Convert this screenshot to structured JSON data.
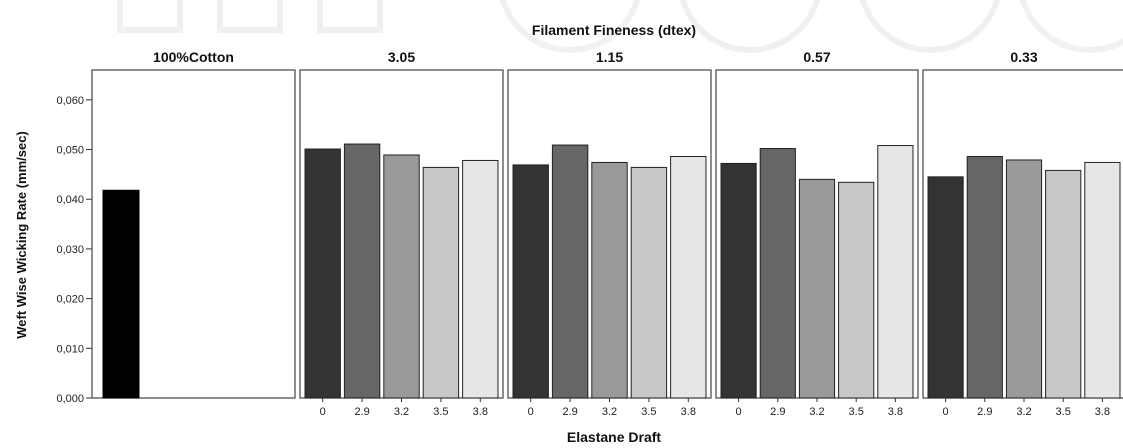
{
  "chart_data": {
    "type": "bar",
    "title": "Filament Fineness (dtex)",
    "xlabel": "Elastane Draft",
    "ylabel": "Weft Wise Wicking Rate (mm/sec)",
    "ylim": [
      0,
      0.066
    ],
    "yticks": [
      "0,000",
      "0,010",
      "0,020",
      "0,030",
      "0,040",
      "0,050",
      "0,060"
    ],
    "ytick_values": [
      0,
      0.01,
      0.02,
      0.03,
      0.04,
      0.05,
      0.06
    ],
    "categories": [
      "0",
      "2.9",
      "3.2",
      "3.5",
      "3.8"
    ],
    "series_colors": [
      "#333333",
      "#666666",
      "#999999",
      "#c8c8c8",
      "#e6e6e6"
    ],
    "control_color": "#000000",
    "grid": false,
    "panels": [
      {
        "name": "100%Cotton",
        "values": [
          0.0418
        ]
      },
      {
        "name": "3.05",
        "values": [
          0.0501,
          0.0511,
          0.0489,
          0.0464,
          0.0478
        ]
      },
      {
        "name": "1.15",
        "values": [
          0.0469,
          0.0509,
          0.0474,
          0.0464,
          0.0486
        ]
      },
      {
        "name": "0.57",
        "values": [
          0.0472,
          0.0502,
          0.044,
          0.0434,
          0.0508
        ]
      },
      {
        "name": "0.33",
        "values": [
          0.0445,
          0.0486,
          0.0479,
          0.0458,
          0.0474
        ]
      }
    ]
  }
}
